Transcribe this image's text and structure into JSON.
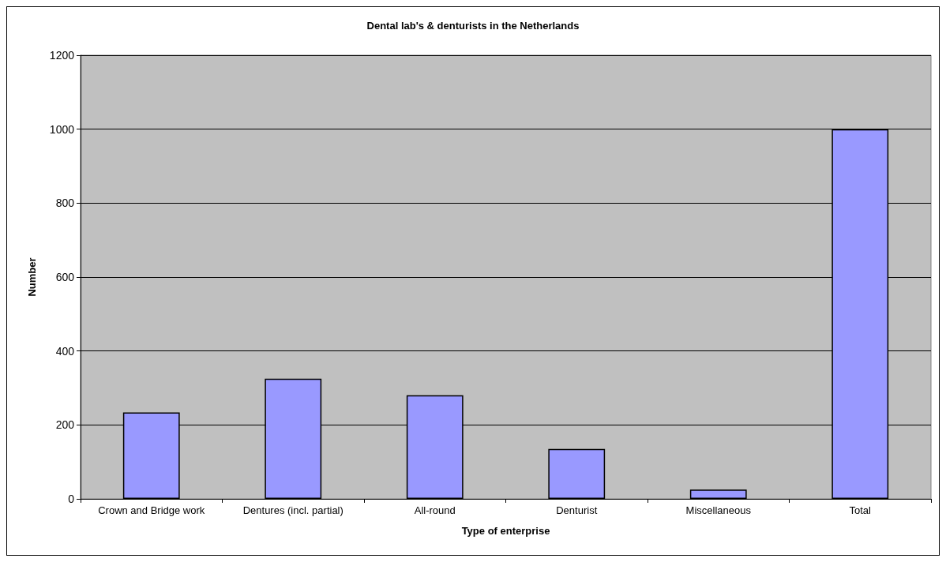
{
  "chart_data": {
    "type": "bar",
    "title": "Dental lab's & denturists in the Netherlands",
    "xlabel": "Type of enterprise",
    "ylabel": "Number",
    "categories": [
      "Crown and Bridge work",
      "Dentures (incl. partial)",
      "All-round",
      "Denturist",
      "Miscellaneous",
      "Total"
    ],
    "values": [
      234,
      325,
      280,
      135,
      25,
      1000
    ],
    "color": "#9999ff",
    "ylim": [
      0,
      1200
    ],
    "yticks": [
      0,
      200,
      400,
      600,
      800,
      1000,
      1200
    ],
    "grid": "y"
  }
}
